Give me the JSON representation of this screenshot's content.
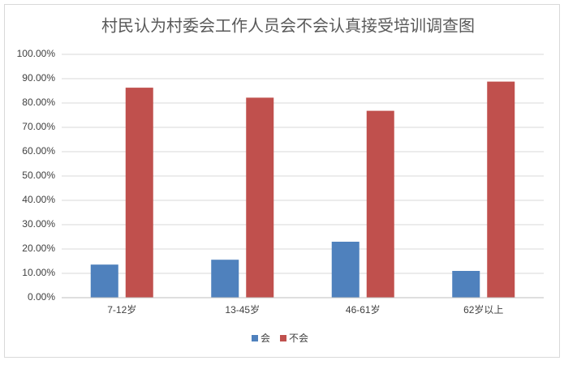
{
  "chart_data": {
    "type": "bar",
    "title": "村民认为村委会工作人员会不会认真接受培训调查图",
    "categories": [
      "7-12岁",
      "13-45岁",
      "46-61岁",
      "62岁以上"
    ],
    "series": [
      {
        "name": "会",
        "color": "#4f81bd",
        "values": [
          13.6,
          15.6,
          23.0,
          11.0
        ]
      },
      {
        "name": "不会",
        "color": "#c0504d",
        "values": [
          86.3,
          82.2,
          76.8,
          88.8
        ]
      }
    ],
    "ylim": [
      0,
      100
    ],
    "yticks": [
      {
        "value": 0,
        "label": "0.00%"
      },
      {
        "value": 10,
        "label": "10.00%"
      },
      {
        "value": 20,
        "label": "20.00%"
      },
      {
        "value": 30,
        "label": "30.00%"
      },
      {
        "value": 40,
        "label": "40.00%"
      },
      {
        "value": 50,
        "label": "50.00%"
      },
      {
        "value": 60,
        "label": "60.00%"
      },
      {
        "value": 70,
        "label": "70.00%"
      },
      {
        "value": 80,
        "label": "80.00%"
      },
      {
        "value": 90,
        "label": "90.00%"
      },
      {
        "value": 100,
        "label": "100.00%"
      }
    ],
    "grid": true,
    "legend": "bottom"
  }
}
